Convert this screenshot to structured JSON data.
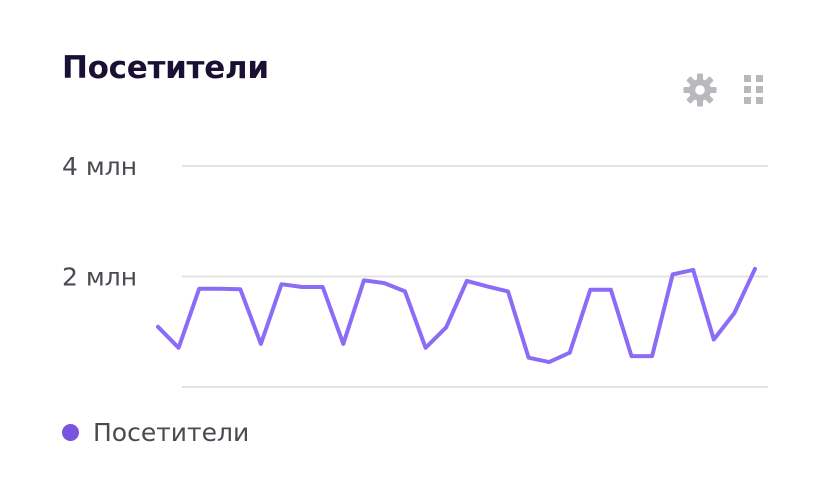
{
  "widget": {
    "title": "Посетители",
    "settings_icon": "gear-icon",
    "drag_icon": "grid-dots-icon"
  },
  "colors": {
    "series": "#8b6cf6",
    "legend_dot": "#7c52e0",
    "gridline": "#e3e3e6",
    "icon": "#b9b9bd"
  },
  "chart_data": {
    "type": "line",
    "title": "Посетители",
    "xlabel": "",
    "ylabel": "",
    "ylim": [
      0,
      4000000
    ],
    "y_ticks": [
      {
        "value": 4000000,
        "label": "4 млн"
      },
      {
        "value": 2000000,
        "label": "2 млн"
      },
      {
        "value": 0,
        "label": ""
      }
    ],
    "grid": true,
    "legend_position": "bottom-left",
    "series": [
      {
        "name": "Посетители",
        "values": [
          1090000,
          710000,
          1780000,
          1780000,
          1770000,
          780000,
          1860000,
          1810000,
          1810000,
          780000,
          1930000,
          1880000,
          1730000,
          710000,
          1080000,
          1920000,
          1820000,
          1730000,
          530000,
          450000,
          620000,
          1760000,
          1760000,
          560000,
          560000,
          2040000,
          2120000,
          860000,
          1340000,
          2140000
        ]
      }
    ]
  },
  "legend": {
    "items": [
      {
        "label": "Посетители"
      }
    ]
  }
}
